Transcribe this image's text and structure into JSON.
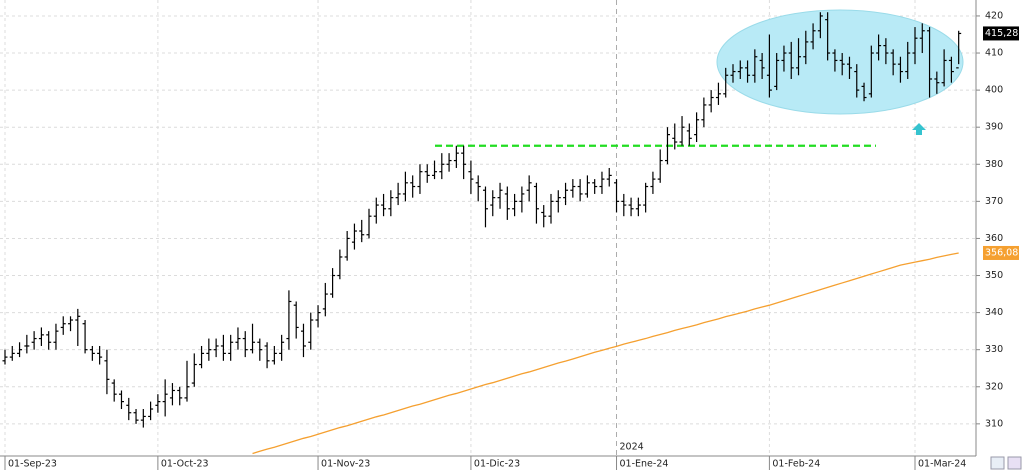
{
  "chart_data": {
    "type": "ohlc",
    "categories": [
      "01-Sep-23",
      null,
      null,
      null,
      null,
      null,
      null,
      null,
      null,
      null,
      null,
      null,
      null,
      null,
      null,
      null,
      null,
      null,
      null,
      null,
      null,
      "01-Oct-23",
      null,
      null,
      null,
      null,
      null,
      null,
      null,
      null,
      null,
      null,
      null,
      null,
      null,
      null,
      null,
      null,
      null,
      null,
      null,
      null,
      null,
      "01-Nov-23",
      null,
      null,
      null,
      null,
      null,
      null,
      null,
      null,
      null,
      null,
      null,
      null,
      null,
      null,
      null,
      null,
      null,
      null,
      null,
      null,
      "01-Dic-23",
      null,
      null,
      null,
      null,
      null,
      null,
      null,
      null,
      null,
      null,
      null,
      null,
      null,
      null,
      null,
      null,
      null,
      null,
      null,
      "01-Ene-24",
      null,
      null,
      null,
      null,
      null,
      null,
      null,
      null,
      null,
      null,
      null,
      null,
      null,
      null,
      null,
      null,
      null,
      null,
      null,
      null,
      "01-Feb-24",
      null,
      null,
      null,
      null,
      null,
      null,
      null,
      null,
      null,
      null,
      null,
      null,
      null,
      null,
      null,
      null,
      null,
      null,
      null,
      "01-Mar-24",
      null,
      null,
      null,
      null,
      null,
      null
    ],
    "year_label": "2024",
    "open": [
      327,
      328,
      329,
      331,
      332,
      333,
      334,
      332,
      336,
      337,
      338,
      337,
      330,
      329,
      327,
      321,
      318,
      315,
      313,
      311,
      312,
      315,
      316,
      317,
      319,
      317,
      321,
      326,
      329,
      330,
      331,
      329,
      332,
      333,
      330,
      332,
      331,
      327,
      329,
      333,
      342,
      335,
      332,
      338,
      341,
      345,
      350,
      355,
      359,
      362,
      361,
      366,
      369,
      368,
      371,
      372,
      375,
      374,
      378,
      377,
      378,
      380,
      381,
      383,
      378,
      375,
      373,
      369,
      371,
      372,
      368,
      370,
      373,
      374,
      367,
      366,
      370,
      371,
      373,
      374,
      372,
      375,
      374,
      376,
      375,
      370,
      369,
      368,
      369,
      374,
      376,
      381,
      387,
      386,
      389,
      388,
      392,
      396,
      398,
      399,
      404,
      405,
      406,
      404,
      408,
      404,
      401,
      408,
      410,
      406,
      409,
      413,
      416,
      419,
      410,
      408,
      407,
      405,
      401,
      399,
      410,
      412,
      410,
      407,
      405,
      410,
      414,
      416,
      403,
      402,
      408,
      406
    ],
    "high": [
      330,
      331,
      332,
      334,
      335,
      336,
      335,
      337,
      339,
      339,
      341,
      338,
      331,
      331,
      330,
      322,
      319,
      317,
      314,
      314,
      316,
      318,
      322,
      321,
      320,
      327,
      329,
      331,
      333,
      333,
      334,
      334,
      336,
      335,
      337,
      333,
      332,
      331,
      334,
      346,
      343,
      337,
      340,
      342,
      348,
      352,
      357,
      362,
      364,
      365,
      368,
      371,
      372,
      373,
      375,
      378,
      377,
      380,
      380,
      381,
      383,
      383,
      385,
      385,
      381,
      377,
      374,
      373,
      375,
      374,
      372,
      374,
      377,
      375,
      369,
      372,
      373,
      375,
      376,
      376,
      377,
      376,
      378,
      379,
      376,
      372,
      371,
      371,
      375,
      378,
      384,
      390,
      391,
      393,
      391,
      394,
      398,
      400,
      402,
      406,
      407,
      408,
      408,
      411,
      410,
      415,
      410,
      412,
      413,
      414,
      416,
      418,
      421,
      421,
      411,
      410,
      409,
      407,
      402,
      412,
      415,
      414,
      411,
      409,
      413,
      417,
      418,
      417,
      405,
      411,
      409,
      416
    ],
    "low": [
      326,
      327,
      328,
      329,
      330,
      331,
      330,
      330,
      334,
      335,
      331,
      329,
      327,
      326,
      318,
      316,
      314,
      311,
      310,
      309,
      311,
      313,
      312,
      315,
      315,
      316,
      320,
      325,
      327,
      328,
      327,
      327,
      330,
      328,
      329,
      327,
      325,
      326,
      327,
      330,
      333,
      328,
      330,
      336,
      339,
      344,
      349,
      354,
      357,
      359,
      360,
      364,
      366,
      366,
      369,
      370,
      371,
      372,
      375,
      376,
      376,
      378,
      379,
      376,
      372,
      370,
      363,
      366,
      368,
      365,
      366,
      367,
      370,
      364,
      363,
      364,
      367,
      369,
      371,
      370,
      371,
      372,
      372,
      374,
      367,
      366,
      366,
      366,
      367,
      372,
      375,
      380,
      384,
      385,
      385,
      386,
      390,
      394,
      396,
      398,
      402,
      403,
      402,
      402,
      403,
      398,
      400,
      405,
      403,
      404,
      407,
      411,
      414,
      408,
      405,
      404,
      403,
      398,
      397,
      398,
      408,
      407,
      404,
      402,
      403,
      407,
      410,
      398,
      399,
      401,
      402,
      407
    ],
    "close": [
      328,
      329,
      330,
      331,
      333,
      334,
      332,
      335,
      337,
      338,
      339,
      330,
      329,
      328,
      322,
      318,
      316,
      313,
      311,
      312,
      314,
      316,
      318,
      319,
      317,
      320,
      326,
      329,
      330,
      331,
      329,
      332,
      333,
      330,
      332,
      330,
      327,
      329,
      332,
      343,
      336,
      331,
      338,
      340,
      345,
      350,
      355,
      360,
      362,
      361,
      366,
      369,
      368,
      371,
      372,
      375,
      374,
      378,
      377,
      378,
      380,
      381,
      383,
      380,
      376,
      374,
      368,
      371,
      373,
      368,
      370,
      372,
      375,
      368,
      366,
      370,
      371,
      373,
      374,
      372,
      375,
      374,
      376,
      377,
      370,
      369,
      368,
      369,
      374,
      376,
      381,
      388,
      386,
      390,
      387,
      392,
      396,
      398,
      399,
      404,
      405,
      406,
      404,
      409,
      406,
      400,
      408,
      410,
      406,
      409,
      413,
      416,
      420,
      410,
      408,
      407,
      406,
      400,
      398,
      410,
      412,
      410,
      407,
      405,
      410,
      414,
      416,
      403,
      402,
      408,
      405,
      415.28
    ],
    "close_last_label": "415,28",
    "color": "#000000",
    "average": {
      "color": "#f5a030",
      "last_label": "356,08",
      "values": [
        null,
        null,
        null,
        null,
        null,
        null,
        null,
        null,
        null,
        null,
        null,
        null,
        null,
        null,
        null,
        null,
        null,
        null,
        null,
        null,
        null,
        null,
        null,
        null,
        null,
        null,
        null,
        null,
        null,
        null,
        null,
        null,
        null,
        null,
        302.0,
        302.6,
        303.2,
        303.7,
        304.3,
        304.9,
        305.5,
        306.1,
        306.6,
        307.2,
        307.8,
        308.4,
        309.0,
        309.5,
        310.1,
        310.7,
        311.3,
        311.9,
        312.4,
        313.0,
        313.6,
        314.2,
        314.8,
        315.3,
        315.9,
        316.5,
        317.1,
        317.7,
        318.2,
        318.8,
        319.4,
        320.0,
        320.6,
        321.1,
        321.7,
        322.3,
        322.9,
        323.5,
        324.0,
        324.6,
        325.2,
        325.8,
        326.4,
        326.9,
        327.5,
        328.1,
        328.7,
        329.3,
        329.8,
        330.4,
        330.9,
        331.5,
        332.0,
        332.5,
        333.0,
        333.6,
        334.1,
        334.6,
        335.2,
        335.7,
        336.2,
        336.7,
        337.3,
        337.8,
        338.3,
        338.9,
        339.4,
        339.9,
        340.4,
        341.0,
        341.5,
        342.0,
        342.6,
        343.2,
        343.8,
        344.4,
        345.0,
        345.6,
        346.2,
        346.8,
        347.4,
        348.0,
        348.6,
        349.2,
        349.8,
        350.4,
        351.0,
        351.6,
        352.2,
        352.8,
        353.2,
        353.6,
        354.0,
        354.4,
        354.9,
        355.3,
        355.7,
        356.08
      ]
    },
    "support_level": 385,
    "support_color": "#22dd22",
    "ylim": [
      301.6,
      424.3
    ],
    "yticks": [
      310,
      320,
      330,
      340,
      350,
      360,
      370,
      380,
      390,
      400,
      410,
      420
    ],
    "grid": true
  }
}
